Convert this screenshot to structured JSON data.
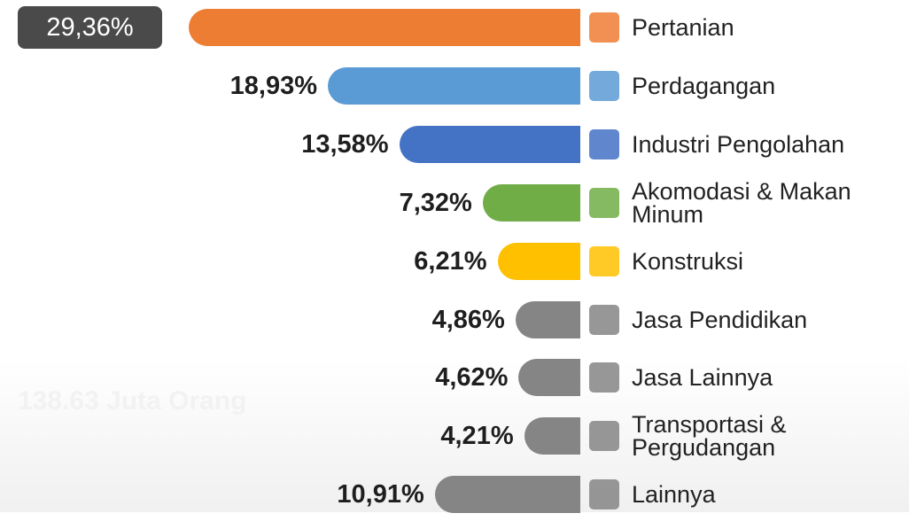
{
  "chart_data": {
    "type": "bar",
    "orientation": "horizontal",
    "annotation": "138.63 Juta Orang",
    "categories": [
      "Pertanian",
      "Perdagangan",
      "Industri Pengolahan",
      "Akomodasi & Makan Minum",
      "Konstruksi",
      "Jasa Pendidikan",
      "Jasa Lainnya",
      "Transportasi & Pergudangan",
      "Lainnya"
    ],
    "values": [
      29.36,
      18.93,
      13.58,
      7.32,
      6.21,
      4.86,
      4.62,
      4.21,
      10.91
    ],
    "value_labels": [
      "29,36%",
      "18,93%",
      "13,58%",
      "7,32%",
      "6,21%",
      "4,86%",
      "4,62%",
      "4,21%",
      "10,91%"
    ],
    "colors": [
      "#ee7d34",
      "#5b9bd5",
      "#4472c4",
      "#70ad47",
      "#ffc000",
      "#858585",
      "#858585",
      "#858585",
      "#858585"
    ],
    "highlight_first_label": true
  }
}
